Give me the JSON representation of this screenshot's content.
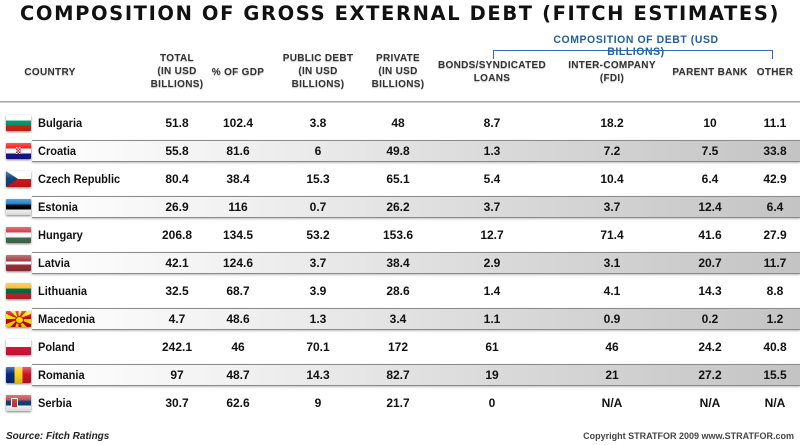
{
  "chart_data": {
    "type": "table",
    "title": "COMPOSITION OF GROSS EXTERNAL DEBT (FITCH ESTIMATES)",
    "group_header": "COMPOSITION OF DEBT (USD BILLIONS)",
    "columns": [
      "COUNTRY",
      "TOTAL (IN USD BILLIONS)",
      "% OF GDP",
      "PUBLIC DEBT (IN USD BILLIONS)",
      "PRIVATE (IN USD BILLIONS)",
      "BONDS/SYNDICATED LOANS",
      "INTER-COMPANY (FDI)",
      "PARENT BANK",
      "OTHER"
    ],
    "header_lines": [
      [
        "COUNTRY"
      ],
      [
        "TOTAL",
        "(IN USD",
        "BILLIONS)"
      ],
      [
        "% OF GDP"
      ],
      [
        "PUBLIC DEBT",
        "(IN USD",
        "BILLIONS)"
      ],
      [
        "PRIVATE",
        "(IN USD",
        "BILLIONS)"
      ],
      [
        "BONDS/SYNDICATED",
        "LOANS"
      ],
      [
        "INTER-COMPANY",
        "(FDI)"
      ],
      [
        "PARENT BANK"
      ],
      [
        "OTHER"
      ]
    ],
    "rows": [
      {
        "country": "Bulgaria",
        "flag": "bulgaria-flag",
        "values": [
          "51.8",
          "102.4",
          "3.8",
          "48",
          "8.7",
          "18.2",
          "10",
          "11.1"
        ]
      },
      {
        "country": "Croatia",
        "flag": "croatia-flag",
        "values": [
          "55.8",
          "81.6",
          "6",
          "49.8",
          "1.3",
          "7.2",
          "7.5",
          "33.8"
        ]
      },
      {
        "country": "Czech Republic",
        "flag": "czech-flag",
        "values": [
          "80.4",
          "38.4",
          "15.3",
          "65.1",
          "5.4",
          "10.4",
          "6.4",
          "42.9"
        ]
      },
      {
        "country": "Estonia",
        "flag": "estonia-flag",
        "values": [
          "26.9",
          "116",
          "0.7",
          "26.2",
          "3.7",
          "3.7",
          "12.4",
          "6.4"
        ]
      },
      {
        "country": "Hungary",
        "flag": "hungary-flag",
        "values": [
          "206.8",
          "134.5",
          "53.2",
          "153.6",
          "12.7",
          "71.4",
          "41.6",
          "27.9"
        ]
      },
      {
        "country": "Latvia",
        "flag": "latvia-flag",
        "values": [
          "42.1",
          "124.6",
          "3.7",
          "38.4",
          "2.9",
          "3.1",
          "20.7",
          "11.7"
        ]
      },
      {
        "country": "Lithuania",
        "flag": "lithuania-flag",
        "values": [
          "32.5",
          "68.7",
          "3.9",
          "28.6",
          "1.4",
          "4.1",
          "14.3",
          "8.8"
        ]
      },
      {
        "country": "Macedonia",
        "flag": "macedonia-flag",
        "values": [
          "4.7",
          "48.6",
          "1.3",
          "3.4",
          "1.1",
          "0.9",
          "0.2",
          "1.2"
        ]
      },
      {
        "country": "Poland",
        "flag": "poland-flag",
        "values": [
          "242.1",
          "46",
          "70.1",
          "172",
          "61",
          "46",
          "24.2",
          "40.8"
        ]
      },
      {
        "country": "Romania",
        "flag": "romania-flag",
        "values": [
          "97",
          "48.7",
          "14.3",
          "82.7",
          "19",
          "21",
          "27.2",
          "15.5"
        ]
      },
      {
        "country": "Serbia",
        "flag": "serbia-flag",
        "values": [
          "30.7",
          "62.6",
          "9",
          "21.7",
          "0",
          "N/A",
          "N/A",
          "N/A"
        ]
      }
    ],
    "source": "Source: Fitch Ratings",
    "copyright": "Copyright STRATFOR 2009   www.STRATFOR.com"
  },
  "colors": {
    "group_header": "#1f5fa0",
    "bracket": "#2e6cb0"
  }
}
